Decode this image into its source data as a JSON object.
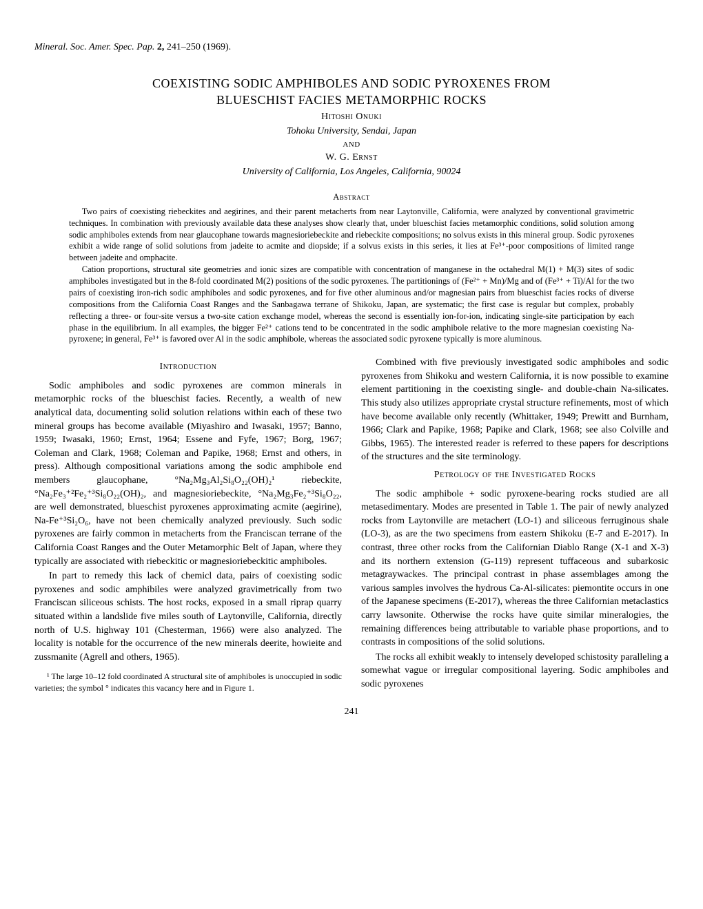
{
  "citation": {
    "journal": "Mineral. Soc. Amer. Spec. Pap.",
    "volume": "2,",
    "pages": "241–250",
    "year": "(1969)."
  },
  "title_line1": "COEXISTING SODIC AMPHIBOLES AND SODIC PYROXENES FROM",
  "title_line2": "BLUESCHIST FACIES METAMORPHIC ROCKS",
  "author1": "Hitoshi Onuki",
  "affiliation1": "Tohoku University, Sendai, Japan",
  "and": "AND",
  "author2": "W. G. Ernst",
  "affiliation2": "University of California, Los Angeles, California, 90024",
  "abstract_heading": "Abstract",
  "abstract_p1": "Two pairs of coexisting riebeckites and aegirines, and their parent metacherts from near Laytonville, California, were analyzed by conventional gravimetric techniques. In combination with previously available data these analyses show clearly that, under blueschist facies metamorphic conditions, solid solution among sodic amphiboles extends from near glaucophane towards magnesioriebeckite and riebeckite compositions; no solvus exists in this mineral group. Sodic pyroxenes exhibit a wide range of solid solutions from jadeite to acmite and diopside; if a solvus exists in this series, it lies at Fe³⁺-poor compositions of limited range between jadeite and omphacite.",
  "abstract_p2": "Cation proportions, structural site geometries and ionic sizes are compatible with concentration of manganese in the octahedral M(1) + M(3) sites of sodic amphiboles investigated but in the 8-fold coordinated M(2) positions of the sodic pyroxenes. The partitionings of (Fe²⁺ + Mn)/Mg and of (Fe³⁺ + Ti)/Al for the two pairs of coexisting iron-rich sodic amphiboles and sodic pyroxenes, and for five other aluminous and/or magnesian pairs from blueschist facies rocks of diverse compositions from the California Coast Ranges and the Sanbagawa terrane of Shikoku, Japan, are systematic; the first case is regular but complex, probably reflecting a three- or four-site versus a two-site cation exchange model, whereas the second is essentially ion-for-ion, indicating single-site participation by each phase in the equilibrium. In all examples, the bigger Fe²⁺ cations tend to be concentrated in the sodic amphibole relative to the more magnesian coexisting Na-pyroxene; in general, Fe³⁺ is favored over Al in the sodic amphibole, whereas the associated sodic pyroxene typically is more aluminous.",
  "intro_heading": "Introduction",
  "intro_p1": "Sodic amphiboles and sodic pyroxenes are common minerals in metamorphic rocks of the blueschist facies. Recently, a wealth of new analytical data, documenting solid solution relations within each of these two mineral groups has become available (Miyashiro and Iwasaki, 1957; Banno, 1959; Iwasaki, 1960; Ernst, 1964; Essene and Fyfe, 1967; Borg, 1967; Coleman and Clark, 1968; Coleman and Papike, 1968; Ernst and others, in press). Although compositional variations among the sodic amphibole end members glaucophane, °Na₂Mg₃Al₂Si₈O₂₂(OH)₂¹ riebeckite, °Na₂Fe₃⁺²Fe₂⁺³Si₈O₂₂(OH)₂, and magnesioriebeckite, °Na₂Mg₃Fe₂⁺³Si₈O₂₂, are well demonstrated, blueschist pyroxenes approximating acmite (aegirine), Na-Fe⁺³Si₂O₆, have not been chemically analyzed previously. Such sodic pyroxenes are fairly common in metacherts from the Franciscan terrane of the California Coast Ranges and the Outer Metamorphic Belt of Japan, where they typically are associated with riebeckitic or magnesioriebeckitic amphiboles.",
  "intro_p2": "In part to remedy this lack of chemicl data, pairs of coexisting sodic pyroxenes and sodic amphibiles were analyzed gravimetrically from two Franciscan siliceous schists. The host rocks, exposed in a small riprap quarry situated within a landslide five miles south of Laytonville, California, directly north of U.S. highway 101 (Chesterman, 1966) were also analyzed. The locality is notable for the occurrence of the new minerals deerite, howieite and zussmanite (Agrell and others, 1965).",
  "footnote": "¹ The large 10–12 fold coordinated A structural site of amphiboles is unoccupied in sodic varieties; the symbol ° indicates this vacancy here and in Figure 1.",
  "col2_p1": "Combined with five previously investigated sodic amphiboles and sodic pyroxenes from Shikoku and western California, it is now possible to examine element partitioning in the coexisting single- and double-chain Na-silicates. This study also utilizes appropriate crystal structure refinements, most of which have become available only recently (Whittaker, 1949; Prewitt and Burnham, 1966; Clark and Papike, 1968; Papike and Clark, 1968; see also Colville and Gibbs, 1965). The interested reader is referred to these papers for descriptions of the structures and the site terminology.",
  "petrology_heading": "Petrology of the Investigated Rocks",
  "petro_p1": "The sodic amphibole + sodic pyroxene-bearing rocks studied are all metasedimentary. Modes are presented in Table 1. The pair of newly analyzed rocks from Laytonville are metachert (LO-1) and siliceous ferruginous shale (LO-3), as are the two specimens from eastern Shikoku (E-7 and E-2017). In contrast, three other rocks from the Californian Diablo Range (X-1 and X-3) and its northern extension (G-119) represent tuffaceous and subarkosic metagraywackes. The principal contrast in phase assemblages among the various samples involves the hydrous Ca-Al-silicates: piemontite occurs in one of the Japanese specimens (E-2017), whereas the three Californian metaclastics carry lawsonite. Otherwise the rocks have quite similar mineralogies, the remaining differences being attributable to variable phase proportions, and to contrasts in compositions of the solid solutions.",
  "petro_p2": "The rocks all exhibit weakly to intensely developed schistosity paralleling a somewhat vague or irregular compositional layering. Sodic amphiboles and sodic pyroxenes",
  "page_number": "241"
}
